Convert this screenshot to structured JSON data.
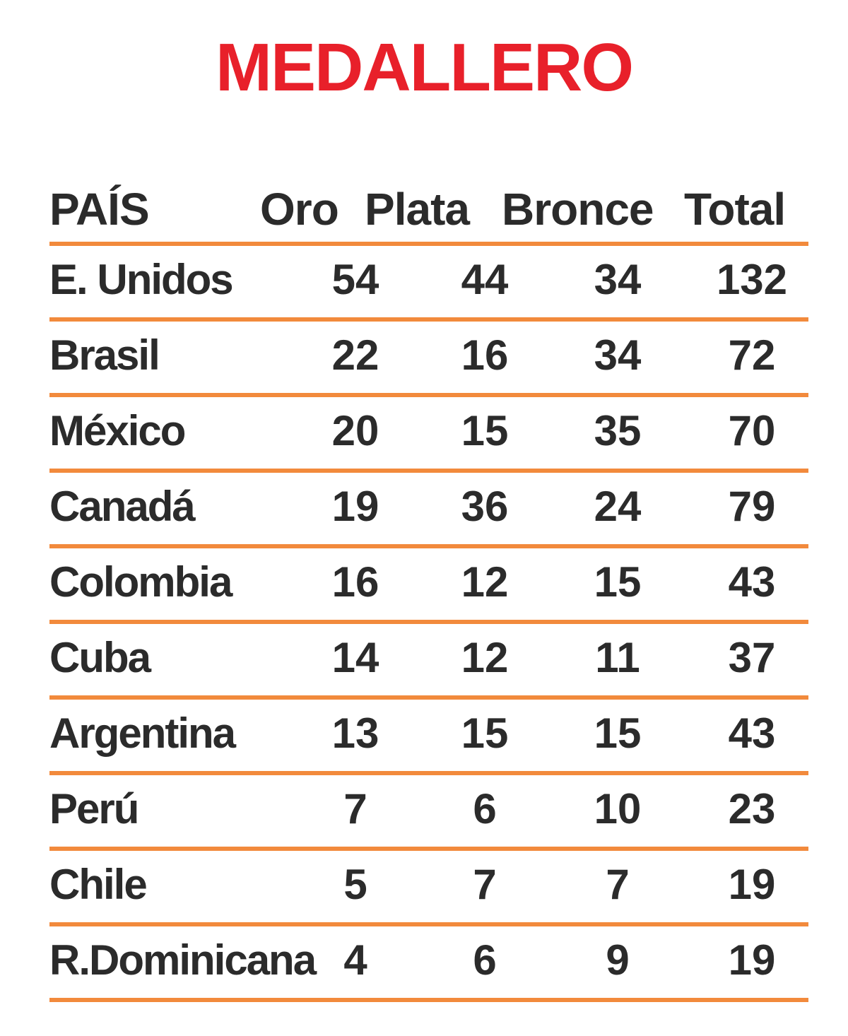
{
  "chart_data": {
    "type": "table",
    "title": "MEDALLERO",
    "columns": [
      "PAÍS",
      "Oro",
      "Plata",
      "Bronce",
      "Total"
    ],
    "rows": [
      {
        "country": "E. Unidos",
        "gold": 54,
        "silver": 44,
        "bronze": 34,
        "total": 132
      },
      {
        "country": "Brasil",
        "gold": 22,
        "silver": 16,
        "bronze": 34,
        "total": 72
      },
      {
        "country": "México",
        "gold": 20,
        "silver": 15,
        "bronze": 35,
        "total": 70
      },
      {
        "country": "Canadá",
        "gold": 19,
        "silver": 36,
        "bronze": 24,
        "total": 79
      },
      {
        "country": "Colombia",
        "gold": 16,
        "silver": 12,
        "bronze": 15,
        "total": 43
      },
      {
        "country": "Cuba",
        "gold": 14,
        "silver": 12,
        "bronze": 11,
        "total": 37
      },
      {
        "country": "Argentina",
        "gold": 13,
        "silver": 15,
        "bronze": 15,
        "total": 43
      },
      {
        "country": "Perú",
        "gold": 7,
        "silver": 6,
        "bronze": 10,
        "total": 23
      },
      {
        "country": "Chile",
        "gold": 5,
        "silver": 7,
        "bronze": 7,
        "total": 19
      },
      {
        "country": "R.Dominicana",
        "gold": 4,
        "silver": 6,
        "bronze": 9,
        "total": 19
      }
    ],
    "colors": {
      "title": "#e8202a",
      "rule": "#f28a3c",
      "text": "#2b2b2b"
    }
  }
}
